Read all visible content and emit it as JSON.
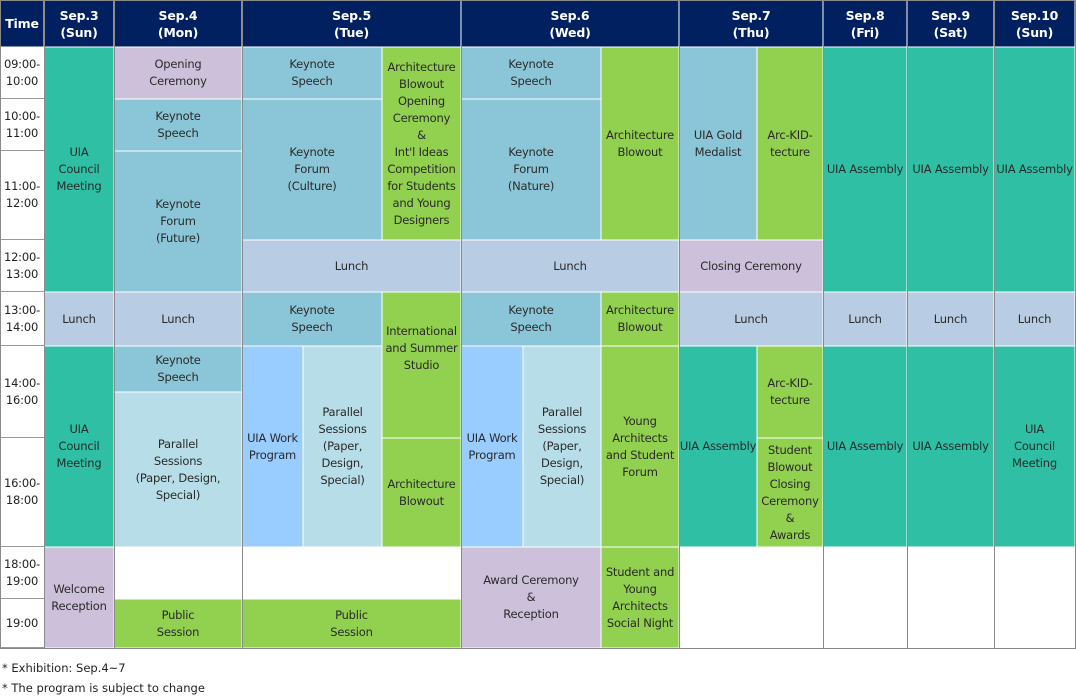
{
  "colors": {
    "header": "#002060",
    "teal": "#2EBFA5",
    "purple": "#CCC0DA",
    "keynote": "#8BC6D8",
    "lunch": "#B8CCE4",
    "green": "#92D050",
    "workprogram": "#99CCFF",
    "parallel": "#B7DEE8",
    "empty": "#FFFFFF"
  },
  "header": {
    "time": "Time",
    "days": [
      "Sep.3\n(Sun)",
      "Sep.4\n(Mon)",
      "Sep.5\n(Tue)",
      "Sep.6\n(Wed)",
      "Sep.7\n(Thu)",
      "Sep.8\n(Fri)",
      "Sep.9\n(Sat)",
      "Sep.10\n(Sun)"
    ]
  },
  "times": [
    "09:00-\n10:00",
    "10:00-\n11:00",
    "11:00-\n12:00",
    "12:00-\n13:00",
    "13:00-\n14:00",
    "14:00-\n16:00",
    "16:00-\n18:00",
    "18:00-\n19:00",
    "19:00"
  ],
  "cells": [
    {
      "text": "UIA\nCouncil\nMeeting",
      "color": "teal"
    },
    {
      "text": "Lunch",
      "color": "lunch"
    },
    {
      "text": "UIA\nCouncil\nMeeting",
      "color": "teal"
    },
    {
      "text": "Welcome\nReception",
      "color": "purple"
    },
    {
      "text": "Opening\nCeremony",
      "color": "purple"
    },
    {
      "text": "Keynote\nSpeech",
      "color": "keynote"
    },
    {
      "text": "Keynote\nForum\n(Future)",
      "color": "keynote"
    },
    {
      "text": "Lunch",
      "color": "lunch"
    },
    {
      "text": "Keynote\nSpeech",
      "color": "keynote"
    },
    {
      "text": "Parallel\nSessions\n(Paper, Design,\nSpecial)",
      "color": "parallel"
    },
    {
      "text": "",
      "color": "empty"
    },
    {
      "text": "Public\nSession",
      "color": "green"
    },
    {
      "text": "Keynote\nSpeech",
      "color": "keynote"
    },
    {
      "text": "Keynote\nForum\n(Culture)",
      "color": "keynote"
    },
    {
      "text": "Architecture\nBlowout\nOpening\nCeremony\n&\nInt'l Ideas\nCompetition\nfor Students\nand Young\nDesigners",
      "color": "green"
    },
    {
      "text": "Lunch",
      "color": "lunch"
    },
    {
      "text": "Keynote\nSpeech",
      "color": "keynote"
    },
    {
      "text": "International\nand Summer\nStudio\n\n\n",
      "color": "green"
    },
    {
      "text": "UIA Work\nProgram",
      "color": "workprogram"
    },
    {
      "text": "Parallel\nSessions\n(Paper,\nDesign,\nSpecial)",
      "color": "parallel"
    },
    {
      "text": "Architecture\nBlowout",
      "color": "green"
    },
    {
      "text": "",
      "color": "empty"
    },
    {
      "text": "Public\nSession",
      "color": "green"
    },
    {
      "text": "Keynote\nSpeech",
      "color": "keynote"
    },
    {
      "text": "Keynote\nForum\n(Nature)",
      "color": "keynote"
    },
    {
      "text": "Architecture\nBlowout",
      "color": "green"
    },
    {
      "text": "Lunch",
      "color": "lunch"
    },
    {
      "text": "Keynote\nSpeech",
      "color": "keynote"
    },
    {
      "text": "Architecture\nBlowout",
      "color": "green"
    },
    {
      "text": "UIA Work\nProgram",
      "color": "workprogram"
    },
    {
      "text": "Parallel\nSessions\n(Paper,\nDesign,\nSpecial)",
      "color": "parallel"
    },
    {
      "text": "Young\nArchitects\nand Student\nForum",
      "color": "green"
    },
    {
      "text": "Award Ceremony\n&\nReception",
      "color": "purple"
    },
    {
      "text": "Student and\nYoung\nArchitects\nSocial Night",
      "color": "green"
    },
    {
      "text": "UIA Gold\nMedalist",
      "color": "keynote"
    },
    {
      "text": "Arc-KID-\ntecture",
      "color": "green"
    },
    {
      "text": "Closing Ceremony",
      "color": "purple"
    },
    {
      "text": "Lunch",
      "color": "lunch"
    },
    {
      "text": "UIA Assembly",
      "color": "teal"
    },
    {
      "text": "Arc-KID-\ntecture",
      "color": "green"
    },
    {
      "text": "Student\nBlowout\nClosing\nCeremony\n&\nAwards",
      "color": "green"
    },
    {
      "text": "",
      "color": "empty"
    },
    {
      "text": "UIA Assembly",
      "color": "teal"
    },
    {
      "text": "Lunch",
      "color": "lunch"
    },
    {
      "text": "UIA Assembly",
      "color": "teal"
    },
    {
      "text": "",
      "color": "empty"
    },
    {
      "text": "UIA Assembly",
      "color": "teal"
    },
    {
      "text": "Lunch",
      "color": "lunch"
    },
    {
      "text": "UIA Assembly",
      "color": "teal"
    },
    {
      "text": "",
      "color": "empty"
    },
    {
      "text": "UIA Assembly",
      "color": "teal"
    },
    {
      "text": "Lunch",
      "color": "lunch"
    },
    {
      "text": "UIA\nCouncil\nMeeting",
      "color": "teal"
    },
    {
      "text": "",
      "color": "empty"
    }
  ],
  "notes": [
    "* Exhibition: Sep.4~7",
    "* The program is subject to change"
  ]
}
